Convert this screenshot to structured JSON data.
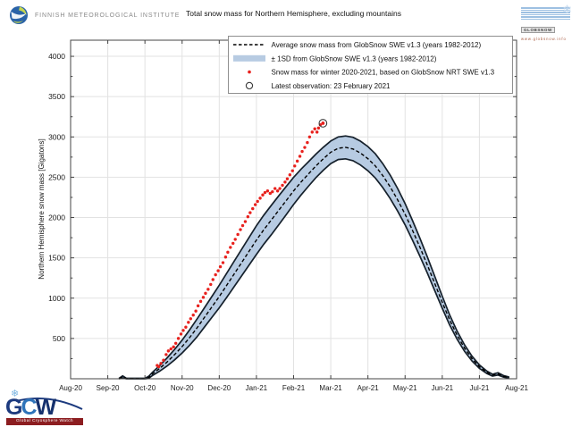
{
  "header": {
    "fmi_text": "FINNISH METEOROLOGICAL INSTITUTE",
    "globsnow_name": "GLOBSNOW",
    "globsnow_url": "www.globsnow.info"
  },
  "gcw": {
    "letters": [
      {
        "ch": "G",
        "color": "#1c3a7e"
      },
      {
        "ch": "C",
        "color": "#2f74ba"
      },
      {
        "ch": "W",
        "color": "#16316e"
      }
    ],
    "caption": "Global Cryosphere Watch",
    "snowflake": "❄"
  },
  "chart_data": {
    "type": "line",
    "title": "Total snow mass for Northern Hemisphere, excluding mountains",
    "xlabel": "",
    "ylabel": "Northern Hemisphere snow mass [Gigatons]",
    "x_unit": "months since 1 Aug 2020",
    "xlim_months": [
      0,
      12
    ],
    "ylim": [
      0,
      4200
    ],
    "grid": true,
    "x_tick_labels": [
      "Aug-20",
      "Sep-20",
      "Oct-20",
      "Nov-20",
      "Dec-20",
      "Jan-21",
      "Feb-21",
      "Mar-21",
      "Apr-21",
      "May-21",
      "Jun-21",
      "Jul-21",
      "Aug-21"
    ],
    "y_ticks": [
      500,
      1000,
      1500,
      2000,
      2500,
      3000,
      3500,
      4000
    ],
    "y_minor_tick_step": 250,
    "colors": {
      "band_fill": "#b7cbe2",
      "band_edge": "#15202b",
      "mean_line": "#000000",
      "obs_dot": "#e8211d",
      "latest_ring": "#3a3a3a",
      "grid": "#e2e2e2",
      "axis": "#444444"
    },
    "legend": {
      "position": "top-right-inside",
      "entries": [
        {
          "marker": "dashed-line",
          "label": "Average snow mass from GlobSnow SWE v1.3 (years 1982-2012)"
        },
        {
          "marker": "band",
          "label": "± 1SD from GlobSnow SWE v1.3 (years 1982-2012)"
        },
        {
          "marker": "red-dot",
          "label": "Snow mass for winter 2020-2021, based on GlobSnow NRT SWE v1.3"
        },
        {
          "marker": "open-circle",
          "label": "Latest observation: 23 February 2021"
        }
      ]
    },
    "series": [
      {
        "name": "Average snow mass from GlobSnow SWE v1.3 (years 1982-2012)",
        "style": "dashed-black-line",
        "points": [
          [
            1.3,
            2
          ],
          [
            1.4,
            22
          ],
          [
            1.5,
            3
          ],
          [
            2.0,
            2
          ],
          [
            2.1,
            15
          ],
          [
            2.2,
            60
          ],
          [
            2.4,
            130
          ],
          [
            2.6,
            210
          ],
          [
            2.8,
            300
          ],
          [
            3.0,
            400
          ],
          [
            3.2,
            510
          ],
          [
            3.4,
            630
          ],
          [
            3.6,
            760
          ],
          [
            3.8,
            890
          ],
          [
            4.0,
            1020
          ],
          [
            4.2,
            1160
          ],
          [
            4.4,
            1300
          ],
          [
            4.6,
            1440
          ],
          [
            4.8,
            1580
          ],
          [
            5.0,
            1720
          ],
          [
            5.2,
            1850
          ],
          [
            5.4,
            1970
          ],
          [
            5.6,
            2090
          ],
          [
            5.8,
            2210
          ],
          [
            6.0,
            2330
          ],
          [
            6.2,
            2440
          ],
          [
            6.4,
            2540
          ],
          [
            6.6,
            2640
          ],
          [
            6.8,
            2730
          ],
          [
            7.0,
            2810
          ],
          [
            7.2,
            2860
          ],
          [
            7.4,
            2870
          ],
          [
            7.6,
            2850
          ],
          [
            7.8,
            2800
          ],
          [
            8.0,
            2730
          ],
          [
            8.2,
            2640
          ],
          [
            8.4,
            2520
          ],
          [
            8.6,
            2380
          ],
          [
            8.8,
            2220
          ],
          [
            9.0,
            2040
          ],
          [
            9.2,
            1840
          ],
          [
            9.4,
            1630
          ],
          [
            9.6,
            1410
          ],
          [
            9.8,
            1180
          ],
          [
            10.0,
            950
          ],
          [
            10.2,
            730
          ],
          [
            10.4,
            540
          ],
          [
            10.6,
            380
          ],
          [
            10.8,
            250
          ],
          [
            11.0,
            150
          ],
          [
            11.2,
            80
          ],
          [
            11.35,
            45
          ],
          [
            11.5,
            60
          ],
          [
            11.65,
            30
          ],
          [
            11.8,
            15
          ]
        ]
      },
      {
        "name": "± 1SD from GlobSnow SWE v1.3 (years 1982-2012)",
        "style": "band",
        "upper": [
          [
            1.3,
            4
          ],
          [
            1.4,
            35
          ],
          [
            1.5,
            6
          ],
          [
            2.0,
            6
          ],
          [
            2.1,
            30
          ],
          [
            2.2,
            80
          ],
          [
            2.4,
            165
          ],
          [
            2.6,
            260
          ],
          [
            2.8,
            365
          ],
          [
            3.0,
            480
          ],
          [
            3.2,
            605
          ],
          [
            3.4,
            740
          ],
          [
            3.6,
            880
          ],
          [
            3.8,
            1020
          ],
          [
            4.0,
            1160
          ],
          [
            4.2,
            1310
          ],
          [
            4.4,
            1458
          ],
          [
            4.6,
            1605
          ],
          [
            4.8,
            1752
          ],
          [
            5.0,
            1898
          ],
          [
            5.2,
            2030
          ],
          [
            5.4,
            2152
          ],
          [
            5.6,
            2270
          ],
          [
            5.8,
            2385
          ],
          [
            6.0,
            2498
          ],
          [
            6.2,
            2600
          ],
          [
            6.4,
            2692
          ],
          [
            6.6,
            2786
          ],
          [
            6.8,
            2872
          ],
          [
            7.0,
            2950
          ],
          [
            7.2,
            3000
          ],
          [
            7.4,
            3012
          ],
          [
            7.6,
            2995
          ],
          [
            7.8,
            2948
          ],
          [
            8.0,
            2880
          ],
          [
            8.2,
            2790
          ],
          [
            8.4,
            2668
          ],
          [
            8.6,
            2525
          ],
          [
            8.8,
            2360
          ],
          [
            9.0,
            2172
          ],
          [
            9.2,
            1962
          ],
          [
            9.4,
            1742
          ],
          [
            9.6,
            1510
          ],
          [
            9.8,
            1268
          ],
          [
            10.0,
            1025
          ],
          [
            10.2,
            792
          ],
          [
            10.4,
            590
          ],
          [
            10.6,
            420
          ],
          [
            10.8,
            280
          ],
          [
            11.0,
            172
          ],
          [
            11.2,
            95
          ],
          [
            11.35,
            57
          ],
          [
            11.5,
            74
          ],
          [
            11.65,
            40
          ],
          [
            11.8,
            21
          ]
        ],
        "lower": [
          [
            1.3,
            0
          ],
          [
            1.4,
            10
          ],
          [
            1.5,
            0
          ],
          [
            2.0,
            0
          ],
          [
            2.1,
            5
          ],
          [
            2.2,
            40
          ],
          [
            2.4,
            95
          ],
          [
            2.6,
            160
          ],
          [
            2.8,
            235
          ],
          [
            3.0,
            320
          ],
          [
            3.2,
            415
          ],
          [
            3.4,
            520
          ],
          [
            3.6,
            640
          ],
          [
            3.8,
            760
          ],
          [
            4.0,
            880
          ],
          [
            4.2,
            1010
          ],
          [
            4.4,
            1142
          ],
          [
            4.6,
            1275
          ],
          [
            4.8,
            1408
          ],
          [
            5.0,
            1542
          ],
          [
            5.2,
            1670
          ],
          [
            5.4,
            1788
          ],
          [
            5.6,
            1910
          ],
          [
            5.8,
            2035
          ],
          [
            6.0,
            2162
          ],
          [
            6.2,
            2280
          ],
          [
            6.4,
            2388
          ],
          [
            6.6,
            2494
          ],
          [
            6.8,
            2588
          ],
          [
            7.0,
            2670
          ],
          [
            7.2,
            2720
          ],
          [
            7.4,
            2728
          ],
          [
            7.6,
            2705
          ],
          [
            7.8,
            2652
          ],
          [
            8.0,
            2580
          ],
          [
            8.2,
            2490
          ],
          [
            8.4,
            2372
          ],
          [
            8.6,
            2235
          ],
          [
            8.8,
            2080
          ],
          [
            9.0,
            1908
          ],
          [
            9.2,
            1718
          ],
          [
            9.4,
            1518
          ],
          [
            9.6,
            1310
          ],
          [
            9.8,
            1092
          ],
          [
            10.0,
            875
          ],
          [
            10.2,
            668
          ],
          [
            10.4,
            490
          ],
          [
            10.6,
            340
          ],
          [
            10.8,
            220
          ],
          [
            11.0,
            128
          ],
          [
            11.2,
            65
          ],
          [
            11.35,
            33
          ],
          [
            11.5,
            46
          ],
          [
            11.65,
            20
          ],
          [
            11.8,
            9
          ]
        ]
      },
      {
        "name": "Snow mass for winter 2020-2021, based on GlobSnow NRT SWE v1.3",
        "style": "red-dots",
        "points": [
          [
            2.33,
            165
          ],
          [
            2.37,
            150
          ],
          [
            2.43,
            190
          ],
          [
            2.5,
            230
          ],
          [
            2.57,
            300
          ],
          [
            2.63,
            345
          ],
          [
            2.7,
            370
          ],
          [
            2.77,
            395
          ],
          [
            2.83,
            440
          ],
          [
            2.9,
            500
          ],
          [
            2.97,
            555
          ],
          [
            3.03,
            600
          ],
          [
            3.1,
            640
          ],
          [
            3.17,
            700
          ],
          [
            3.23,
            745
          ],
          [
            3.3,
            790
          ],
          [
            3.37,
            840
          ],
          [
            3.43,
            905
          ],
          [
            3.5,
            960
          ],
          [
            3.57,
            1010
          ],
          [
            3.63,
            1060
          ],
          [
            3.7,
            1110
          ],
          [
            3.77,
            1170
          ],
          [
            3.83,
            1230
          ],
          [
            3.9,
            1290
          ],
          [
            3.97,
            1340
          ],
          [
            4.03,
            1390
          ],
          [
            4.1,
            1440
          ],
          [
            4.17,
            1510
          ],
          [
            4.23,
            1570
          ],
          [
            4.3,
            1630
          ],
          [
            4.37,
            1680
          ],
          [
            4.43,
            1730
          ],
          [
            4.5,
            1790
          ],
          [
            4.57,
            1850
          ],
          [
            4.63,
            1900
          ],
          [
            4.7,
            1950
          ],
          [
            4.77,
            2010
          ],
          [
            4.83,
            2060
          ],
          [
            4.9,
            2110
          ],
          [
            4.97,
            2160
          ],
          [
            5.03,
            2200
          ],
          [
            5.1,
            2240
          ],
          [
            5.17,
            2280
          ],
          [
            5.23,
            2310
          ],
          [
            5.3,
            2330
          ],
          [
            5.37,
            2300
          ],
          [
            5.43,
            2320
          ],
          [
            5.5,
            2360
          ],
          [
            5.57,
            2330
          ],
          [
            5.63,
            2360
          ],
          [
            5.7,
            2400
          ],
          [
            5.77,
            2440
          ],
          [
            5.83,
            2480
          ],
          [
            5.9,
            2530
          ],
          [
            5.97,
            2580
          ],
          [
            6.03,
            2640
          ],
          [
            6.1,
            2700
          ],
          [
            6.17,
            2760
          ],
          [
            6.23,
            2820
          ],
          [
            6.3,
            2870
          ],
          [
            6.37,
            2930
          ],
          [
            6.43,
            3000
          ],
          [
            6.5,
            3060
          ],
          [
            6.57,
            3100
          ],
          [
            6.63,
            3060
          ],
          [
            6.67,
            3110
          ],
          [
            6.72,
            3150
          ]
        ]
      },
      {
        "name": "Latest observation: 23 February 2021",
        "style": "open-circle-on-red-dot",
        "point": [
          6.79,
          3170
        ]
      }
    ]
  }
}
